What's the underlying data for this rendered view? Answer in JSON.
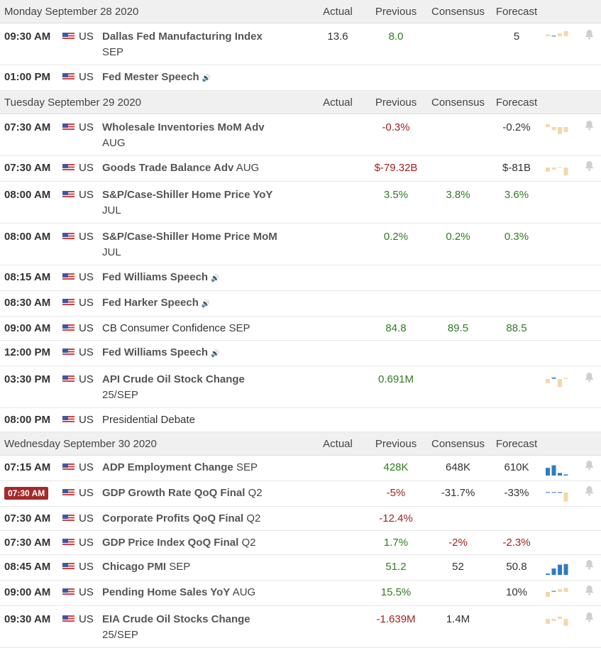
{
  "headers": {
    "actual": "Actual",
    "previous": "Previous",
    "consensus": "Consensus",
    "forecast": "Forecast"
  },
  "days": [
    {
      "date": "Monday September 28 2020",
      "events": [
        {
          "time": "09:30 AM",
          "country": "US",
          "name": "Dallas Fed Manufacturing Index",
          "period": "SEP",
          "bold": true,
          "actual": "13.6",
          "actual_color": "dark",
          "previous": "8.0",
          "previous_color": "green",
          "consensus": "",
          "forecast": "5",
          "forecast_color": "dark",
          "chart": [
            0.3,
            0.0,
            0.5,
            0.9
          ],
          "chart_style": "small",
          "alert": true,
          "twoline": true
        },
        {
          "time": "01:00 PM",
          "country": "US",
          "name": "Fed Mester Speech",
          "period": "",
          "bold": true,
          "audio": true,
          "actual": "",
          "previous": "",
          "consensus": "",
          "forecast": "",
          "chart": null,
          "alert": false
        }
      ]
    },
    {
      "date": "Tuesday September 29 2020",
      "events": [
        {
          "time": "07:30 AM",
          "country": "US",
          "name": "Wholesale Inventories MoM Adv",
          "period": "AUG",
          "bold": true,
          "actual": "",
          "previous": "-0.3%",
          "previous_color": "red",
          "consensus": "",
          "forecast": "-0.2%",
          "forecast_color": "dark",
          "chart": [
            0.5,
            -0.3,
            -0.7,
            -0.5
          ],
          "chart_style": "small",
          "alert": true,
          "twoline": true
        },
        {
          "time": "07:30 AM",
          "country": "US",
          "name": "Goods Trade Balance Adv",
          "period": "AUG",
          "bold": true,
          "actual": "",
          "previous": "$-79.32B",
          "previous_color": "red",
          "consensus": "",
          "forecast": "$-81B",
          "forecast_color": "dark",
          "chart": [
            -0.4,
            -0.2,
            0.1,
            -0.8
          ],
          "chart_style": "small",
          "alert": true
        },
        {
          "time": "08:00 AM",
          "country": "US",
          "name": "S&P/Case-Shiller Home Price YoY",
          "period": "JUL",
          "bold": true,
          "actual": "",
          "previous": "3.5%",
          "previous_color": "green",
          "consensus": "3.8%",
          "consensus_color": "green",
          "forecast": "3.6%",
          "forecast_color": "green",
          "chart": null,
          "alert": false,
          "twoline": true
        },
        {
          "time": "08:00 AM",
          "country": "US",
          "name": "S&P/Case-Shiller Home Price MoM",
          "period": "JUL",
          "bold": true,
          "actual": "",
          "previous": "0.2%",
          "previous_color": "green",
          "consensus": "0.2%",
          "consensus_color": "green",
          "forecast": "0.3%",
          "forecast_color": "green",
          "chart": null,
          "alert": false,
          "twoline": true
        },
        {
          "time": "08:15 AM",
          "country": "US",
          "name": "Fed Williams Speech",
          "period": "",
          "bold": true,
          "audio": true,
          "actual": "",
          "previous": "",
          "consensus": "",
          "forecast": "",
          "chart": null,
          "alert": false
        },
        {
          "time": "08:30 AM",
          "country": "US",
          "name": "Fed Harker Speech",
          "period": "",
          "bold": true,
          "audio": true,
          "actual": "",
          "previous": "",
          "consensus": "",
          "forecast": "",
          "chart": null,
          "alert": false
        },
        {
          "time": "09:00 AM",
          "country": "US",
          "name": "CB Consumer Confidence",
          "period": "SEP",
          "bold": false,
          "actual": "",
          "previous": "84.8",
          "previous_color": "green",
          "consensus": "89.5",
          "consensus_color": "green",
          "forecast": "88.5",
          "forecast_color": "green",
          "chart": null,
          "alert": false
        },
        {
          "time": "12:00 PM",
          "country": "US",
          "name": "Fed Williams Speech",
          "period": "",
          "bold": true,
          "audio": true,
          "actual": "",
          "previous": "",
          "consensus": "",
          "forecast": "",
          "chart": null,
          "alert": false
        },
        {
          "time": "03:30 PM",
          "country": "US",
          "name": "API Crude Oil Stock Change",
          "period": "25/SEP",
          "bold": true,
          "actual": "",
          "previous": "0.691M",
          "previous_color": "green",
          "consensus": "",
          "forecast": "",
          "chart": [
            -0.4,
            0.3,
            -0.8,
            0.2
          ],
          "chart_style": "small",
          "alert": true,
          "twoline": true
        },
        {
          "time": "08:00 PM",
          "country": "US",
          "name": "Presidential Debate",
          "period": "",
          "bold": false,
          "actual": "",
          "previous": "",
          "consensus": "",
          "forecast": "",
          "chart": null,
          "alert": false
        }
      ]
    },
    {
      "date": "Wednesday September 30 2020",
      "events": [
        {
          "time": "07:15 AM",
          "country": "US",
          "name": "ADP Employment Change",
          "period": "SEP",
          "bold": true,
          "actual": "",
          "previous": "428K",
          "previous_color": "green",
          "consensus": "648K",
          "consensus_color": "dark",
          "forecast": "610K",
          "forecast_color": "dark",
          "chart": [
            0.6,
            0.8,
            0.2,
            0.05
          ],
          "chart_style": "blue",
          "alert": true
        },
        {
          "time": "07:30 AM",
          "country": "US",
          "name": "GDP Growth Rate QoQ Final",
          "period": "Q2",
          "bold": true,
          "time_badge": true,
          "actual": "",
          "previous": "-5%",
          "previous_color": "red",
          "consensus": "-31.7%",
          "consensus_color": "dark",
          "forecast": "-33%",
          "forecast_color": "dark",
          "chart": [
            0.05,
            0.05,
            0.05,
            -0.9
          ],
          "chart_style": "small",
          "alert": true
        },
        {
          "time": "07:30 AM",
          "country": "US",
          "name": "Corporate Profits QoQ Final",
          "period": "Q2",
          "bold": true,
          "actual": "",
          "previous": "-12.4%",
          "previous_color": "red",
          "consensus": "",
          "forecast": "",
          "chart": null,
          "alert": false
        },
        {
          "time": "07:30 AM",
          "country": "US",
          "name": "GDP Price Index QoQ Final",
          "period": "Q2",
          "bold": true,
          "actual": "",
          "previous": "1.7%",
          "previous_color": "green",
          "consensus": "-2%",
          "consensus_color": "red",
          "forecast": "-2.3%",
          "forecast_color": "red",
          "chart": null,
          "alert": false
        },
        {
          "time": "08:45 AM",
          "country": "US",
          "name": "Chicago PMI",
          "period": "SEP",
          "bold": true,
          "actual": "",
          "previous": "51.2",
          "previous_color": "green",
          "consensus": "52",
          "consensus_color": "dark",
          "forecast": "50.8",
          "forecast_color": "dark",
          "chart": [
            0.1,
            0.5,
            0.8,
            0.85
          ],
          "chart_style": "blue",
          "alert": true
        },
        {
          "time": "09:00 AM",
          "country": "US",
          "name": "Pending Home Sales YoY",
          "period": "AUG",
          "bold": true,
          "actual": "",
          "previous": "15.5%",
          "previous_color": "green",
          "consensus": "",
          "forecast": "10%",
          "forecast_color": "dark",
          "chart": [
            -0.5,
            0.2,
            0.5,
            0.7
          ],
          "chart_style": "small",
          "alert": true
        },
        {
          "time": "09:30 AM",
          "country": "US",
          "name": "EIA Crude Oil Stocks Change",
          "period": "25/SEP",
          "bold": true,
          "actual": "",
          "previous": "-1.639M",
          "previous_color": "red",
          "consensus": "1.4M",
          "consensus_color": "dark",
          "forecast": "",
          "chart": [
            -0.5,
            -0.2,
            0.4,
            -0.7
          ],
          "chart_style": "small",
          "alert": true,
          "twoline": true
        }
      ]
    }
  ],
  "colors": {
    "green": "#2e7d1f",
    "red": "#a32020",
    "bar_pale": "#f2d9a8",
    "bar_blue": "#2f7bbf",
    "tick": "#6a9fd0",
    "badge": "#a52a2a"
  },
  "icons": {
    "speaker": "speaker-icon",
    "bell": "bell-icon",
    "flag": "us-flag-icon"
  }
}
